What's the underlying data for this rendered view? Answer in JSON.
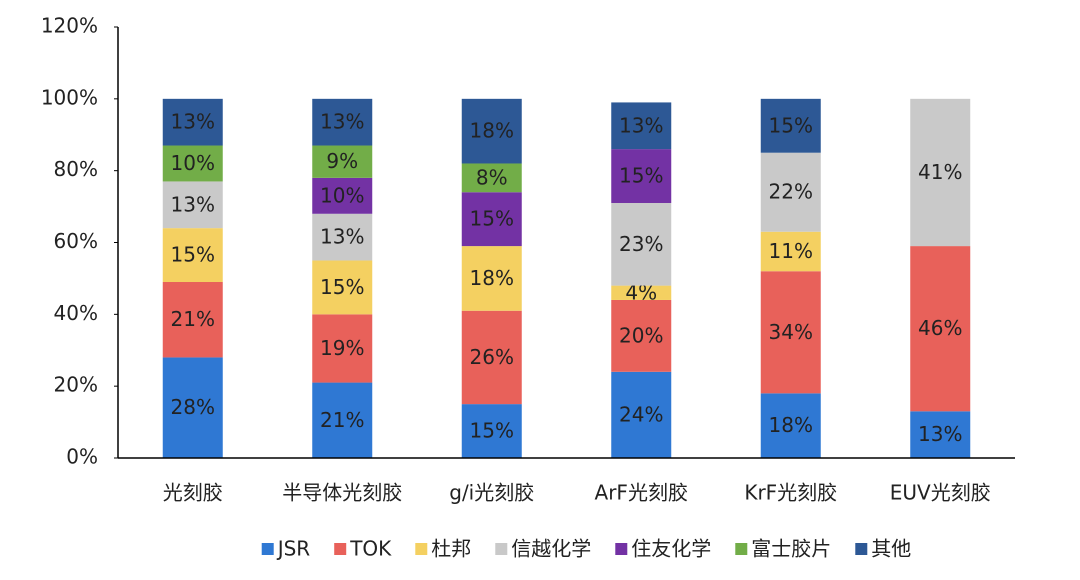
{
  "chart_data": {
    "type": "stacked_bar",
    "categories": [
      "光刻胶",
      "半导体光刻胶",
      "g/i光刻胶",
      "ArF光刻胶",
      "KrF光刻胶",
      "EUV光刻胶"
    ],
    "series": [
      {
        "name": "JSR",
        "color": "#2f78d3",
        "values": [
          28,
          21,
          15,
          24,
          18,
          13
        ],
        "value_labels": [
          "28%",
          "21%",
          "15%",
          "24%",
          "18%",
          "13%"
        ]
      },
      {
        "name": "TOK",
        "color": "#e8615a",
        "values": [
          21,
          19,
          26,
          20,
          34,
          46
        ],
        "value_labels": [
          "21%",
          "19%",
          "26%",
          "20%",
          "34%",
          "46%"
        ]
      },
      {
        "name": "杜邦",
        "color": "#f4d061",
        "values": [
          15,
          15,
          18,
          4,
          11,
          null
        ],
        "value_labels": [
          "15%",
          "15%",
          "18%",
          "4%",
          "11%",
          null
        ]
      },
      {
        "name": "信越化学",
        "color": "#c9c9c9",
        "values": [
          13,
          13,
          null,
          23,
          22,
          41
        ],
        "value_labels": [
          "13%",
          "13%",
          null,
          "23%",
          "22%",
          "41%"
        ]
      },
      {
        "name": "住友化学",
        "color": "#7332a4",
        "values": [
          null,
          10,
          15,
          15,
          null,
          null
        ],
        "value_labels": [
          null,
          "10%",
          "15%",
          "15%",
          null,
          null
        ]
      },
      {
        "name": "富士胶片",
        "color": "#72ad48",
        "values": [
          10,
          9,
          8,
          null,
          null,
          null
        ],
        "value_labels": [
          "10%",
          "9%",
          "8%",
          null,
          null,
          null
        ]
      },
      {
        "name": "其他",
        "color": "#2d5895",
        "values": [
          13,
          13,
          18,
          13,
          15,
          null
        ],
        "value_labels": [
          "13%",
          "13%",
          "18%",
          "13%",
          "15%",
          null
        ]
      }
    ],
    "ylim": [
      0,
      120
    ],
    "yticks": [
      {
        "value": 0,
        "label": "0%"
      },
      {
        "value": 20,
        "label": "20%"
      },
      {
        "value": 40,
        "label": "40%"
      },
      {
        "value": 60,
        "label": "60%"
      },
      {
        "value": 80,
        "label": "80%"
      },
      {
        "value": 100,
        "label": "100%"
      },
      {
        "value": 120,
        "label": "120%"
      }
    ],
    "grid": false,
    "legend": "bottom"
  }
}
